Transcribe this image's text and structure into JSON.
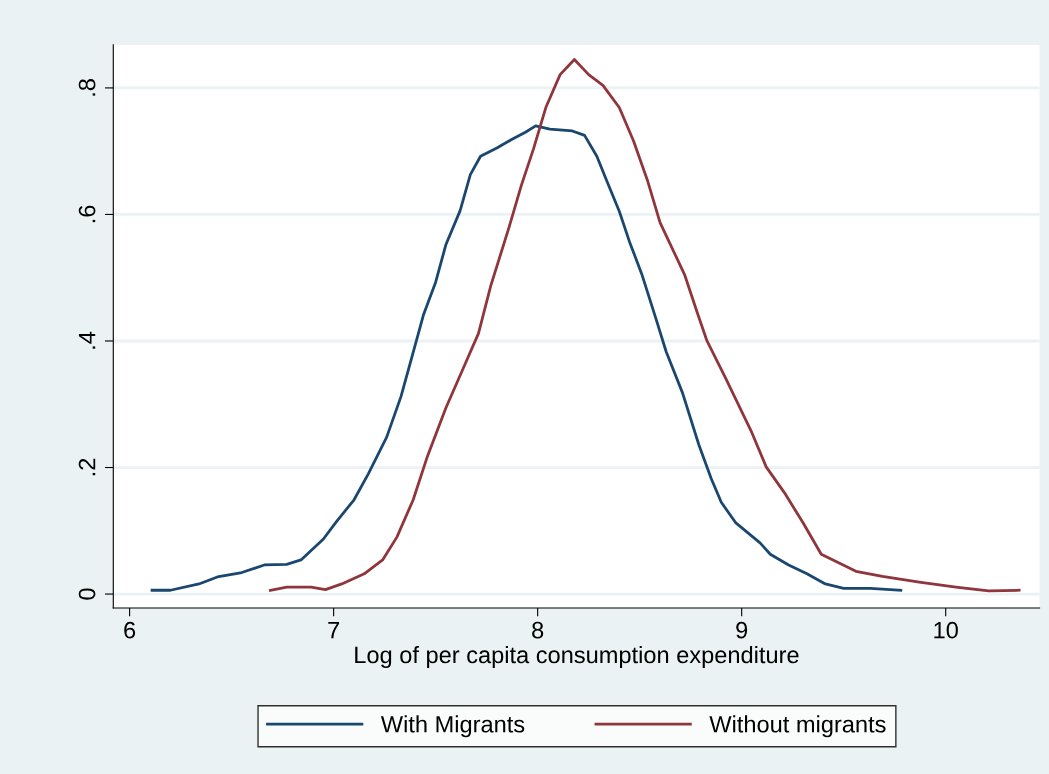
{
  "chart_data": {
    "type": "line",
    "xlabel": "Log of per capita consumption expenditure",
    "xlim": [
      5.92,
      10.46
    ],
    "ylim": [
      -0.022,
      0.868
    ],
    "xticks": [
      6,
      7,
      8,
      9,
      10
    ],
    "yticks": [
      {
        "value": 0,
        "label": "0"
      },
      {
        "value": 0.2,
        "label": ".2"
      },
      {
        "value": 0.4,
        "label": ".4"
      },
      {
        "value": 0.6,
        "label": ".6"
      },
      {
        "value": 0.8,
        "label": ".8"
      }
    ],
    "grid": "y",
    "legend": "bottom",
    "line_style": "solid",
    "marker": "none",
    "series": [
      {
        "name": "With Migrants",
        "color": "#1a476f",
        "x": [
          6.11,
          6.2,
          6.34,
          6.43,
          6.55,
          6.66,
          6.77,
          6.84,
          6.95,
          7.01,
          7.1,
          7.17,
          7.26,
          7.33,
          7.4,
          7.44,
          7.5,
          7.55,
          7.62,
          7.67,
          7.72,
          7.8,
          7.87,
          7.94,
          7.99,
          8.06,
          8.17,
          8.23,
          8.29,
          8.34,
          8.4,
          8.45,
          8.51,
          8.58,
          8.63,
          8.71,
          8.79,
          8.85,
          8.9,
          8.97,
          9.09,
          9.14,
          9.23,
          9.32,
          9.41,
          9.5,
          9.63,
          9.78
        ],
        "values": [
          0.006,
          0.006,
          0.016,
          0.027,
          0.034,
          0.046,
          0.047,
          0.054,
          0.087,
          0.113,
          0.149,
          0.19,
          0.248,
          0.312,
          0.394,
          0.441,
          0.493,
          0.552,
          0.606,
          0.663,
          0.692,
          0.705,
          0.718,
          0.73,
          0.74,
          0.735,
          0.732,
          0.725,
          0.692,
          0.652,
          0.605,
          0.557,
          0.506,
          0.435,
          0.383,
          0.318,
          0.236,
          0.183,
          0.145,
          0.113,
          0.081,
          0.063,
          0.046,
          0.032,
          0.016,
          0.009,
          0.009,
          0.006
        ]
      },
      {
        "name": "Without migrants",
        "color": "#90353b",
        "x": [
          6.69,
          6.77,
          6.89,
          6.96,
          7.04,
          7.15,
          7.24,
          7.31,
          7.39,
          7.46,
          7.55,
          7.63,
          7.71,
          7.77,
          7.86,
          7.92,
          7.98,
          8.04,
          8.11,
          8.18,
          8.25,
          8.32,
          8.4,
          8.47,
          8.54,
          8.6,
          8.72,
          8.78,
          8.83,
          8.92,
          9.05,
          9.12,
          9.21,
          9.3,
          9.39,
          9.56,
          9.69,
          9.87,
          10.05,
          10.21,
          10.36
        ],
        "values": [
          0.006,
          0.011,
          0.011,
          0.007,
          0.016,
          0.032,
          0.054,
          0.09,
          0.149,
          0.218,
          0.294,
          0.353,
          0.412,
          0.487,
          0.58,
          0.646,
          0.704,
          0.769,
          0.821,
          0.845,
          0.821,
          0.804,
          0.769,
          0.716,
          0.652,
          0.587,
          0.505,
          0.447,
          0.4,
          0.342,
          0.255,
          0.201,
          0.16,
          0.113,
          0.063,
          0.036,
          0.028,
          0.019,
          0.011,
          0.005,
          0.006
        ]
      }
    ]
  }
}
